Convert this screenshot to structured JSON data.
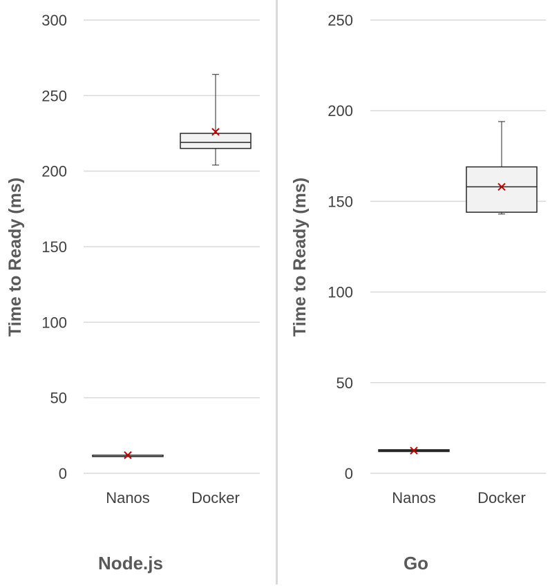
{
  "chart_data": [
    {
      "type": "box",
      "title": "Node.js",
      "ylabel": "Time to Ready (ms)",
      "xlabel": "",
      "ylim": [
        0,
        300
      ],
      "yticks": [
        0,
        50,
        100,
        150,
        200,
        250,
        300
      ],
      "grid": true,
      "categories": [
        "Nanos",
        "Docker"
      ],
      "boxes": [
        {
          "category": "Nanos",
          "min": 12,
          "q1": 12,
          "median": 12,
          "q3": 12,
          "max": 12,
          "mean": 12
        },
        {
          "category": "Docker",
          "min": 204,
          "q1": 215,
          "median": 219,
          "q3": 225,
          "max": 264,
          "mean": 226
        }
      ]
    },
    {
      "type": "box",
      "title": "Go",
      "ylabel": "Time to Ready (ms)",
      "xlabel": "",
      "ylim": [
        0,
        250
      ],
      "yticks": [
        0,
        50,
        100,
        150,
        200,
        250
      ],
      "grid": true,
      "categories": [
        "Nanos",
        "Docker"
      ],
      "boxes": [
        {
          "category": "Nanos",
          "min": 12,
          "q1": 12,
          "median": 12.5,
          "q3": 13,
          "max": 13,
          "mean": 12.5
        },
        {
          "category": "Docker",
          "min": 143,
          "q1": 144,
          "median": 158,
          "q3": 169,
          "max": 194,
          "mean": 158
        }
      ]
    }
  ],
  "colors": {
    "grid": "#d9d9d9",
    "box_fill": "#f2f2f2",
    "box_stroke": "#262626",
    "mean_marker": "#c00000",
    "divider": "#d9d9d9"
  }
}
